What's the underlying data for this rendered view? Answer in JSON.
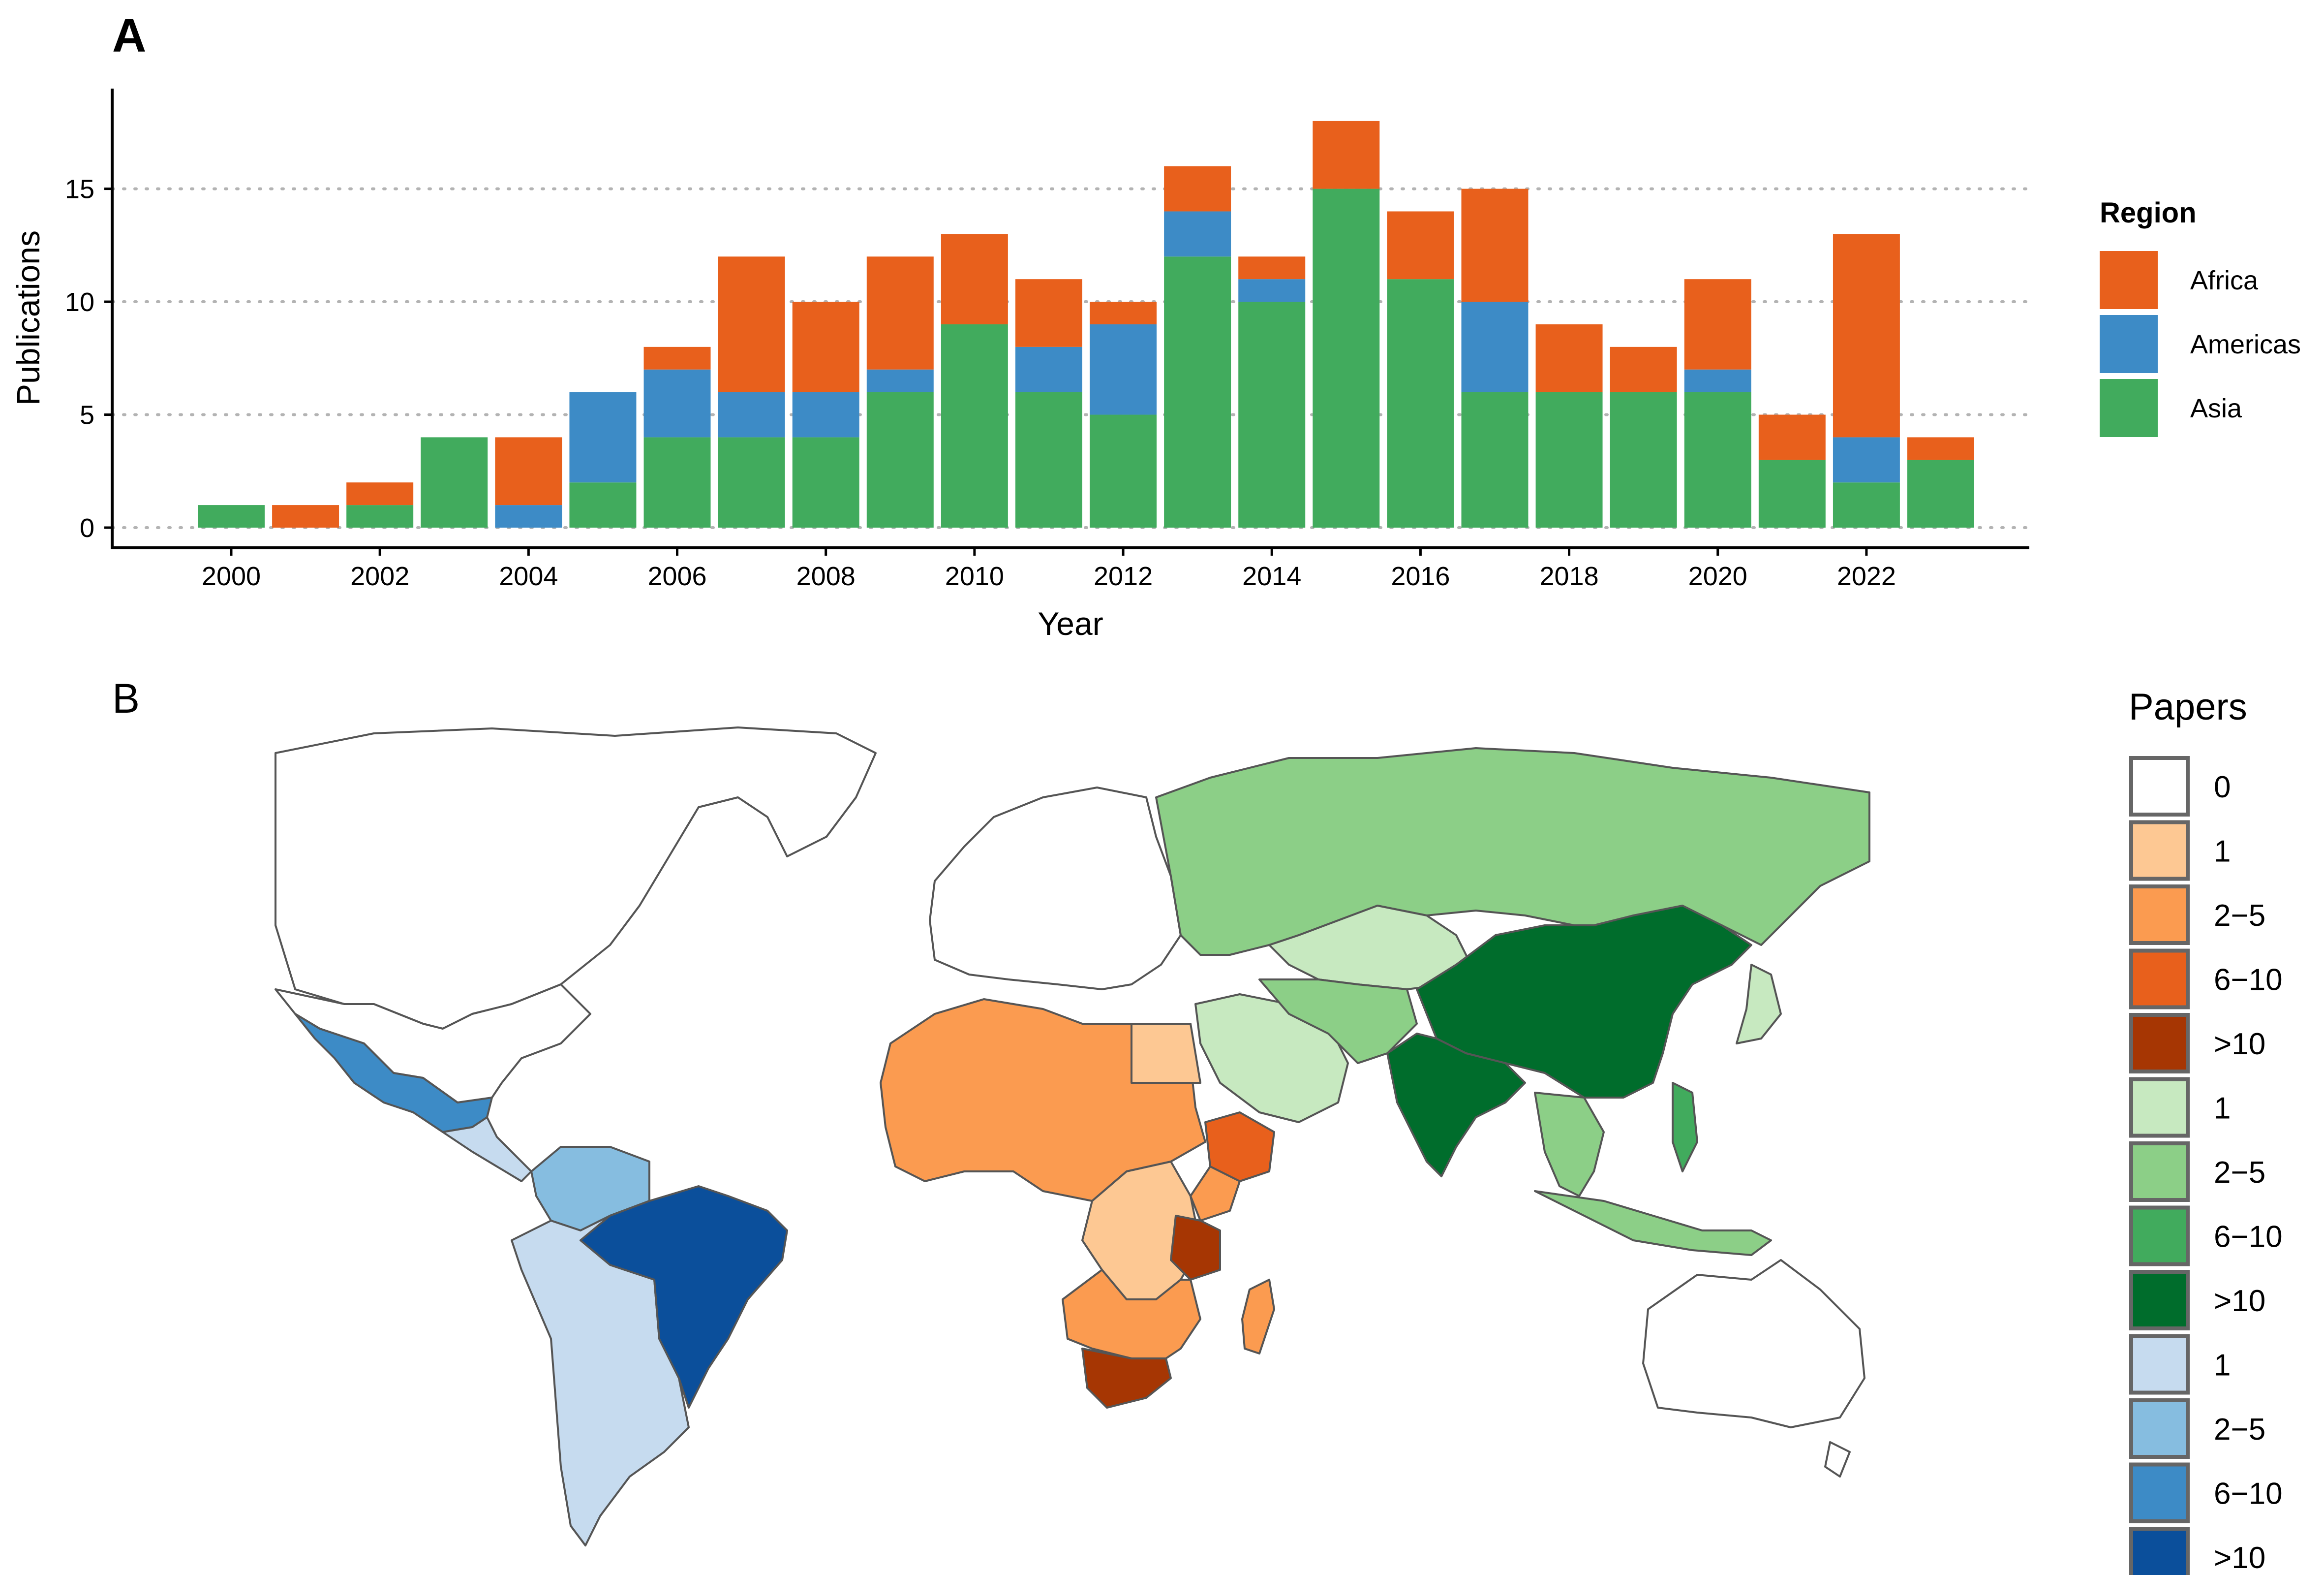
{
  "colors": {
    "Africa": "#e8601c",
    "Americas": "#3d8bc6",
    "Asia": "#41ab5d",
    "grid": "#b3b3b3",
    "axis": "#000000",
    "map_outline": "#555555"
  },
  "chart_data": [
    {
      "type": "bar",
      "panel_label": "A",
      "stacked": true,
      "title": "",
      "xlabel": "Year",
      "ylabel": "Publications",
      "ylim": [
        0,
        19
      ],
      "yticks": [
        0,
        5,
        10,
        15
      ],
      "xticks": [
        2000,
        2002,
        2004,
        2006,
        2008,
        2010,
        2012,
        2014,
        2016,
        2018,
        2020,
        2022
      ],
      "grid": "horizontal dotted",
      "legend": {
        "title": "Region",
        "placement": "right"
      },
      "categories": [
        2000,
        2001,
        2002,
        2003,
        2004,
        2005,
        2006,
        2007,
        2008,
        2009,
        2010,
        2011,
        2012,
        2013,
        2014,
        2015,
        2016,
        2017,
        2018,
        2019,
        2020,
        2021,
        2022,
        2023
      ],
      "series": [
        {
          "name": "Asia",
          "values": [
            1,
            0,
            1,
            4,
            0,
            2,
            4,
            4,
            4,
            6,
            9,
            6,
            5,
            12,
            10,
            15,
            11,
            6,
            6,
            6,
            6,
            3,
            2,
            3
          ]
        },
        {
          "name": "Americas",
          "values": [
            0,
            0,
            0,
            0,
            1,
            4,
            3,
            2,
            2,
            1,
            0,
            2,
            4,
            2,
            1,
            0,
            0,
            4,
            0,
            0,
            1,
            0,
            2,
            0
          ]
        },
        {
          "name": "Africa",
          "values": [
            0,
            1,
            1,
            0,
            3,
            0,
            1,
            6,
            4,
            5,
            4,
            3,
            1,
            2,
            1,
            3,
            3,
            5,
            3,
            2,
            4,
            2,
            9,
            1
          ]
        }
      ]
    },
    {
      "type": "map",
      "panel_label": "B",
      "legend": {
        "title": "Papers",
        "placement": "right",
        "entries": [
          {
            "label": "0",
            "color": "#ffffff"
          },
          {
            "label": "1",
            "color": "#fdc893"
          },
          {
            "label": "2−5",
            "color": "#fb9b50"
          },
          {
            "label": "6−10",
            "color": "#e8601c"
          },
          {
            "label": ">10",
            "color": "#a63603"
          },
          {
            "label": "1",
            "color": "#c7e9c0"
          },
          {
            "label": "2−5",
            "color": "#8ccf87"
          },
          {
            "label": "6−10",
            "color": "#41ab5d"
          },
          {
            "label": ">10",
            "color": "#006d2c"
          },
          {
            "label": "1",
            "color": "#c6dbef"
          },
          {
            "label": "2−5",
            "color": "#86bde0"
          },
          {
            "label": "6−10",
            "color": "#3d8bc6"
          },
          {
            "label": ">10",
            "color": "#0b4f9b"
          }
        ]
      },
      "regions": [
        {
          "name": "Mexico",
          "color": "#3d8bc6"
        },
        {
          "name": "Colombia/Venezuela",
          "color": "#86bde0"
        },
        {
          "name": "Brazil",
          "color": "#0b4f9b"
        },
        {
          "name": "South America (other)",
          "color": "#c6dbef"
        },
        {
          "name": "Central America",
          "color": "#c6dbef"
        },
        {
          "name": "North & West Africa",
          "color": "#fb9b50"
        },
        {
          "name": "Ethiopia",
          "color": "#e8601c"
        },
        {
          "name": "Tanzania",
          "color": "#a63603"
        },
        {
          "name": "South Africa",
          "color": "#a63603"
        },
        {
          "name": "Central Africa",
          "color": "#fdc893"
        },
        {
          "name": "Egypt",
          "color": "#fdc893"
        },
        {
          "name": "Madagascar",
          "color": "#fb9b50"
        },
        {
          "name": "Russia",
          "color": "#8ccf87"
        },
        {
          "name": "Kazakhstan",
          "color": "#c7e9c0"
        },
        {
          "name": "Middle East",
          "color": "#c7e9c0"
        },
        {
          "name": "China",
          "color": "#006d2c"
        },
        {
          "name": "India",
          "color": "#006d2c"
        },
        {
          "name": "Southeast Asia",
          "color": "#8ccf87"
        },
        {
          "name": "Japan",
          "color": "#c7e9c0"
        }
      ]
    }
  ]
}
